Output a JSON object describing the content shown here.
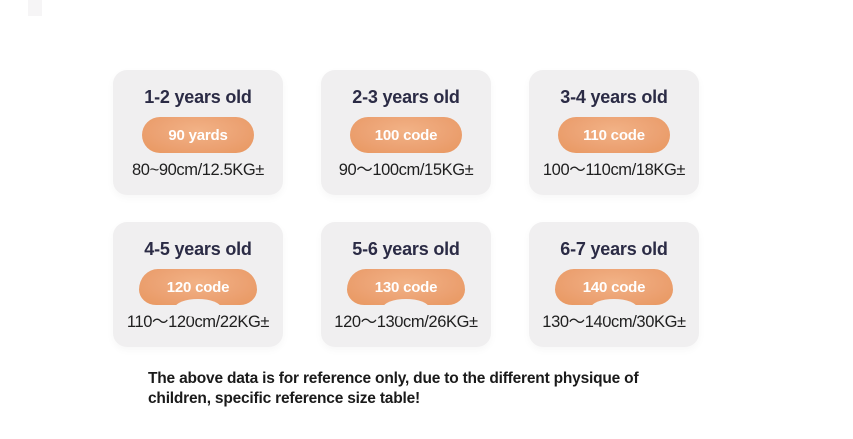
{
  "colors": {
    "page_bg": "#ffffff",
    "card_bg": "#f0eff0",
    "title_color": "#2b2b45",
    "pill_bg": "#eca273",
    "pill_highlight": "#f2b286",
    "pill_edge": "#e8975f",
    "pill_text": "#ffffff",
    "detail_color": "#1f1f1f",
    "note_color": "#1a1a1a"
  },
  "cards": [
    {
      "age": "1-2 years old",
      "size": "90 yards",
      "range": "80~90cm/12.5KG±"
    },
    {
      "age": "2-3 years old",
      "size": "100 code",
      "range": "90～100cm/15KG±"
    },
    {
      "age": "3-4 years old",
      "size": "110 code",
      "range": "100～110cm/18KG±"
    },
    {
      "age": "4-5 years old",
      "size": "120 code",
      "range": "110～120cm/22KG±"
    },
    {
      "age": "5-6 years old",
      "size": "130 code",
      "range": "120～130cm/26KG±"
    },
    {
      "age": "6-7 years old",
      "size": "140 code",
      "range": "130～140cm/30KG±"
    }
  ],
  "note": {
    "line1": "The above data is for reference only, due to the different physique of",
    "line2": "children, specific reference size table!"
  }
}
